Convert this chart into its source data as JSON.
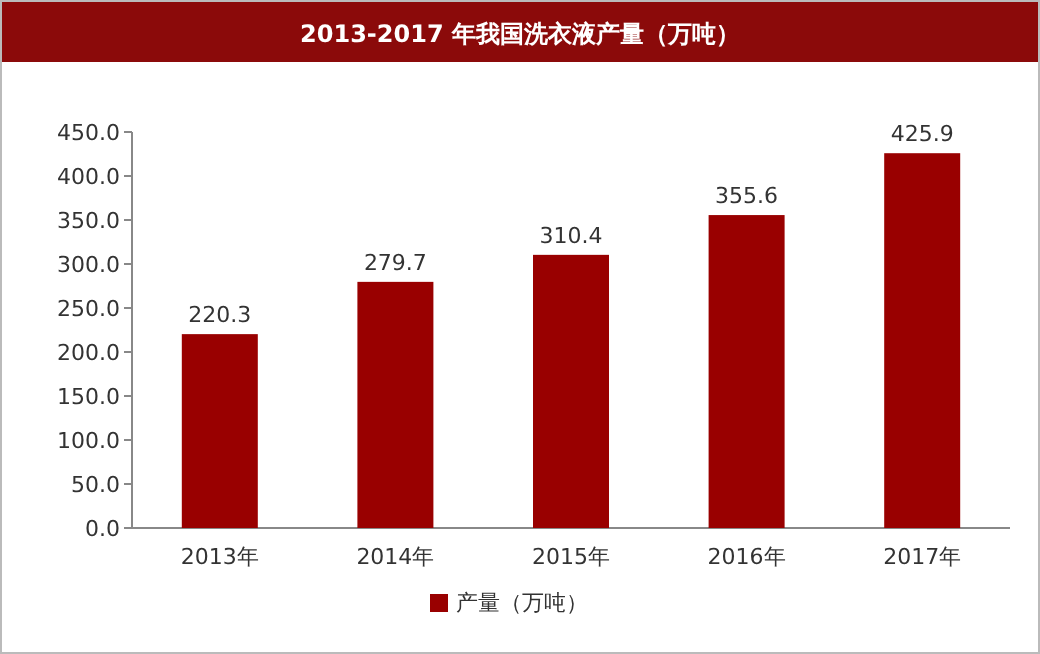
{
  "chart_data": {
    "type": "bar",
    "title": "2013-2017 年我国洗衣液产量（万吨）",
    "categories": [
      "2013年",
      "2014年",
      "2015年",
      "2016年",
      "2017年"
    ],
    "series": [
      {
        "name": "产量（万吨）",
        "color": "#990000",
        "values": [
          220.3,
          279.7,
          310.4,
          355.6,
          425.9
        ]
      }
    ],
    "ylim": [
      0,
      450
    ],
    "yticks": [
      {
        "value": 0,
        "label": "0.0"
      },
      {
        "value": 50,
        "label": "50.0"
      },
      {
        "value": 100,
        "label": "100.0"
      },
      {
        "value": 150,
        "label": "150.0"
      },
      {
        "value": 200,
        "label": "200.0"
      },
      {
        "value": 250,
        "label": "250.0"
      },
      {
        "value": 300,
        "label": "300.0"
      },
      {
        "value": 350,
        "label": "350.0"
      },
      {
        "value": 400,
        "label": "400.0"
      },
      {
        "value": 450,
        "label": "450.0"
      }
    ],
    "data_labels": true,
    "legend": "bottom",
    "grid": false
  }
}
